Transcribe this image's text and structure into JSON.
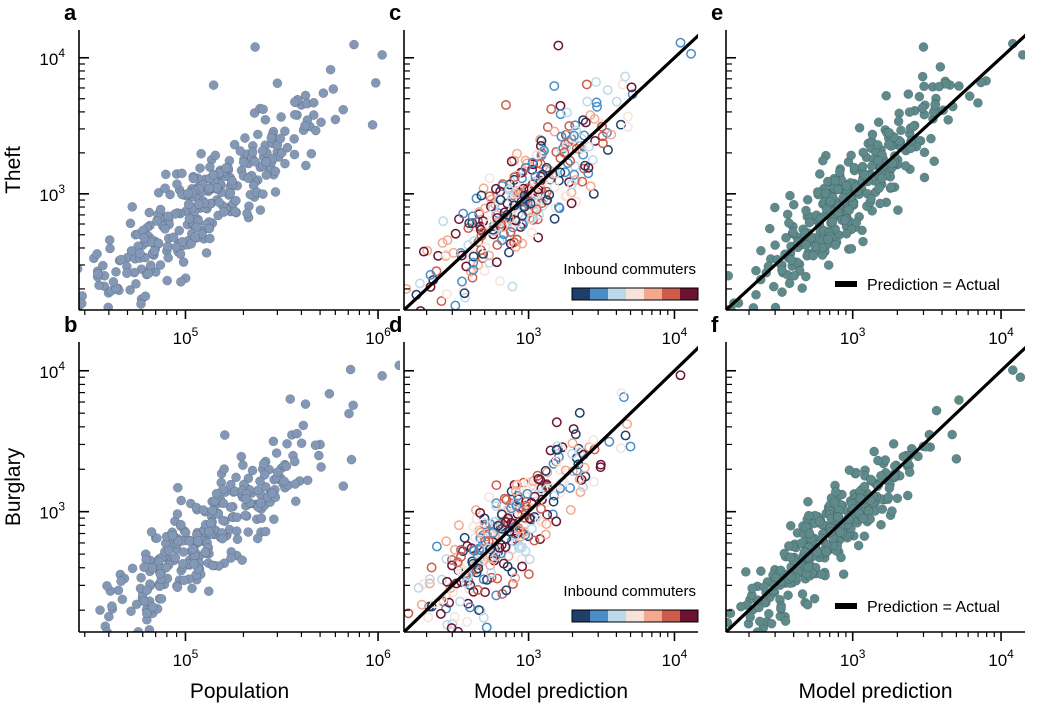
{
  "figure": {
    "row_labels": [
      "Theft",
      "Burglary"
    ],
    "colorbar_label": "Inbound commuters",
    "colorbar_colors": [
      "#1f3f6b",
      "#4a8cc4",
      "#bcd9ea",
      "#f7e3da",
      "#f4a98e",
      "#cc5c4c",
      "#6b1330"
    ],
    "legend_label": "Prediction = Actual",
    "marker_color_population": "#8398b6",
    "marker_color_model": "#5e8a8b",
    "identity_line_color": "#000000"
  },
  "chart_data": [
    {
      "panel": "a",
      "type": "scatter",
      "row": "Theft",
      "col": 0,
      "xlabel": "",
      "xscale": "log",
      "yscale": "log",
      "xlim": [
        28000,
        1300000
      ],
      "ylim": [
        140,
        16000
      ],
      "x_ticks": [
        {
          "v": 100000,
          "t": "10",
          "e": "5"
        },
        {
          "v": 1000000,
          "t": "10",
          "e": "6"
        }
      ],
      "y_ticks": [
        {
          "v": 1000,
          "t": "10",
          "e": "3"
        },
        {
          "v": 10000,
          "t": "10",
          "e": "4"
        }
      ],
      "marker": "filled",
      "points": [
        [
          35000,
          270
        ],
        [
          38000,
          250
        ],
        [
          105000,
          980
        ],
        [
          230000,
          12000
        ],
        [
          750000,
          12500
        ],
        [
          1050000,
          10500
        ],
        [
          300000,
          6500
        ],
        [
          520000,
          5500
        ],
        [
          140000,
          6300
        ],
        [
          400000,
          4500
        ],
        [
          180000,
          2300
        ],
        [
          60000,
          420
        ],
        [
          50000,
          340
        ],
        [
          55000,
          500
        ],
        [
          80000,
          380
        ],
        [
          90000,
          1400
        ],
        [
          260000,
          3500
        ]
      ]
    },
    {
      "panel": "b",
      "type": "scatter",
      "row": "Burglary",
      "col": 0,
      "xlabel": "Population",
      "xscale": "log",
      "yscale": "log",
      "xlim": [
        28000,
        1300000
      ],
      "ylim": [
        140,
        16000
      ],
      "x_ticks": [
        {
          "v": 100000,
          "t": "10",
          "e": "5"
        },
        {
          "v": 1000000,
          "t": "10",
          "e": "6"
        }
      ],
      "y_ticks": [
        {
          "v": 1000,
          "t": "10",
          "e": "3"
        },
        {
          "v": 10000,
          "t": "10",
          "e": "4"
        }
      ],
      "marker": "filled",
      "points": [
        [
          36000,
          200
        ],
        [
          40000,
          180
        ],
        [
          65000,
          145
        ],
        [
          720000,
          10200
        ],
        [
          1050000,
          9200
        ],
        [
          350000,
          6300
        ],
        [
          420000,
          5800
        ],
        [
          500000,
          3000
        ],
        [
          160000,
          3500
        ],
        [
          95000,
          1200
        ],
        [
          70000,
          650
        ],
        [
          120000,
          700
        ]
      ]
    },
    {
      "panel": "c",
      "type": "scatter",
      "row": "Theft",
      "col": 1,
      "xlabel": "",
      "xscale": "log",
      "yscale": "log",
      "xlim": [
        140,
        14500
      ],
      "ylim": [
        140,
        16000
      ],
      "x_ticks": [
        {
          "v": 1000,
          "t": "10",
          "e": "3"
        },
        {
          "v": 10000,
          "t": "10",
          "e": "4"
        }
      ],
      "y_ticks": [],
      "marker": "open",
      "identity_line": true,
      "colorbar": true,
      "points": [
        [
          1600,
          12300
        ],
        [
          13000,
          10700
        ],
        [
          11000,
          12900
        ],
        [
          145,
          200
        ],
        [
          2800,
          1000
        ],
        [
          700,
          4500
        ],
        [
          1500,
          6200
        ],
        [
          4800,
          3700
        ],
        [
          240,
          350
        ],
        [
          450,
          300
        ],
        [
          900,
          1300
        ],
        [
          3500,
          2100
        ],
        [
          1200,
          2500
        ],
        [
          600,
          700
        ]
      ]
    },
    {
      "panel": "d",
      "type": "scatter",
      "row": "Burglary",
      "col": 1,
      "xlabel": "Model prediction",
      "xscale": "log",
      "yscale": "log",
      "xlim": [
        140,
        14500
      ],
      "ylim": [
        140,
        16000
      ],
      "x_ticks": [
        {
          "v": 1000,
          "t": "10",
          "e": "3"
        },
        {
          "v": 10000,
          "t": "10",
          "e": "4"
        }
      ],
      "y_ticks": [],
      "marker": "open",
      "identity_line": true,
      "colorbar": true,
      "points": [
        [
          150,
          190
        ],
        [
          11000,
          9300
        ],
        [
          4500,
          6500
        ],
        [
          5000,
          2900
        ],
        [
          300,
          160
        ],
        [
          260,
          230
        ],
        [
          1500,
          1300
        ],
        [
          2200,
          2800
        ],
        [
          900,
          950
        ],
        [
          600,
          500
        ]
      ]
    },
    {
      "panel": "e",
      "type": "scatter",
      "row": "Theft",
      "col": 2,
      "xlabel": "",
      "xscale": "log",
      "yscale": "log",
      "xlim": [
        140,
        14500
      ],
      "ylim": [
        140,
        16000
      ],
      "x_ticks": [
        {
          "v": 1000,
          "t": "10",
          "e": "3"
        },
        {
          "v": 10000,
          "t": "10",
          "e": "4"
        }
      ],
      "y_ticks": [],
      "marker": "filled",
      "identity_line": true,
      "legend": true,
      "points": [
        [
          145,
          250
        ],
        [
          12000,
          12700
        ],
        [
          14000,
          10500
        ],
        [
          3000,
          12000
        ],
        [
          300,
          420
        ],
        [
          5200,
          6200
        ],
        [
          1800,
          1100
        ],
        [
          600,
          1400
        ]
      ]
    },
    {
      "panel": "f",
      "type": "scatter",
      "row": "Burglary",
      "col": 2,
      "xlabel": "Model prediction",
      "xscale": "log",
      "yscale": "log",
      "xlim": [
        140,
        14500
      ],
      "ylim": [
        140,
        16000
      ],
      "x_ticks": [
        {
          "v": 1000,
          "t": "10",
          "e": "3"
        },
        {
          "v": 10000,
          "t": "10",
          "e": "4"
        }
      ],
      "y_ticks": [],
      "marker": "filled",
      "identity_line": true,
      "legend": true,
      "points": [
        [
          150,
          190
        ],
        [
          12000,
          10100
        ],
        [
          13500,
          9000
        ],
        [
          5200,
          6200
        ],
        [
          250,
          150
        ],
        [
          350,
          180
        ],
        [
          1200,
          1300
        ],
        [
          2500,
          2800
        ]
      ]
    }
  ]
}
